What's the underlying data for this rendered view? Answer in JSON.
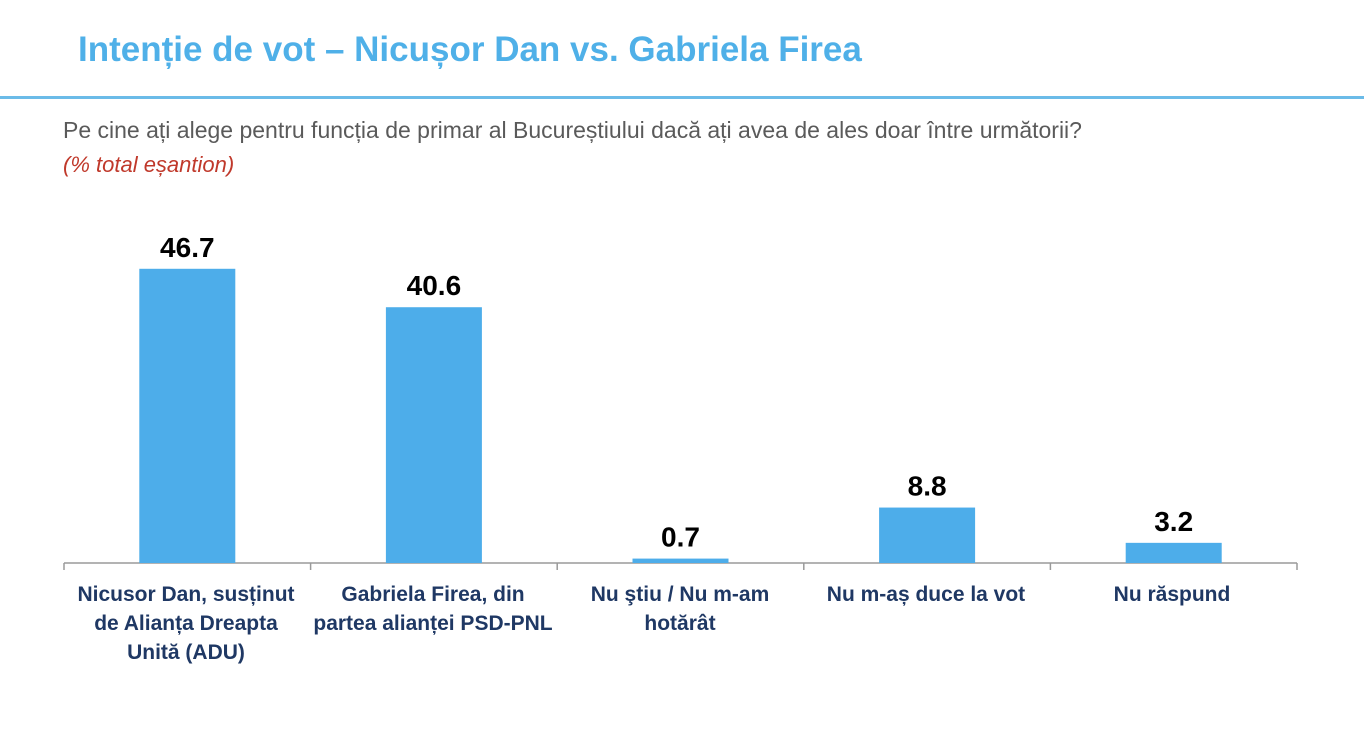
{
  "header": {
    "title": "Intenție de vot – Nicușor Dan vs. Gabriela Firea",
    "question": "Pe cine ați alege pentru funcția de primar al Bucureștiului dacă ați avea de ales doar între următorii?",
    "note": "(% total eșantion)"
  },
  "chart_data": {
    "type": "bar",
    "categories": [
      "Nicusor Dan, susținut de Alianța Dreapta Unită (ADU)",
      "Gabriela Firea, din partea alianței PSD-PNL",
      "Nu ştiu / Nu m-am hotărât",
      "Nu m-aș duce la vot",
      "Nu răspund"
    ],
    "values": [
      46.7,
      40.6,
      0.7,
      8.8,
      3.2
    ],
    "value_labels": [
      "46.7",
      "40.6",
      "0.7",
      "8.8",
      "3.2"
    ],
    "ylim": [
      0,
      50
    ],
    "grid": false,
    "legend": "none",
    "bar_color": "#4dadea"
  }
}
